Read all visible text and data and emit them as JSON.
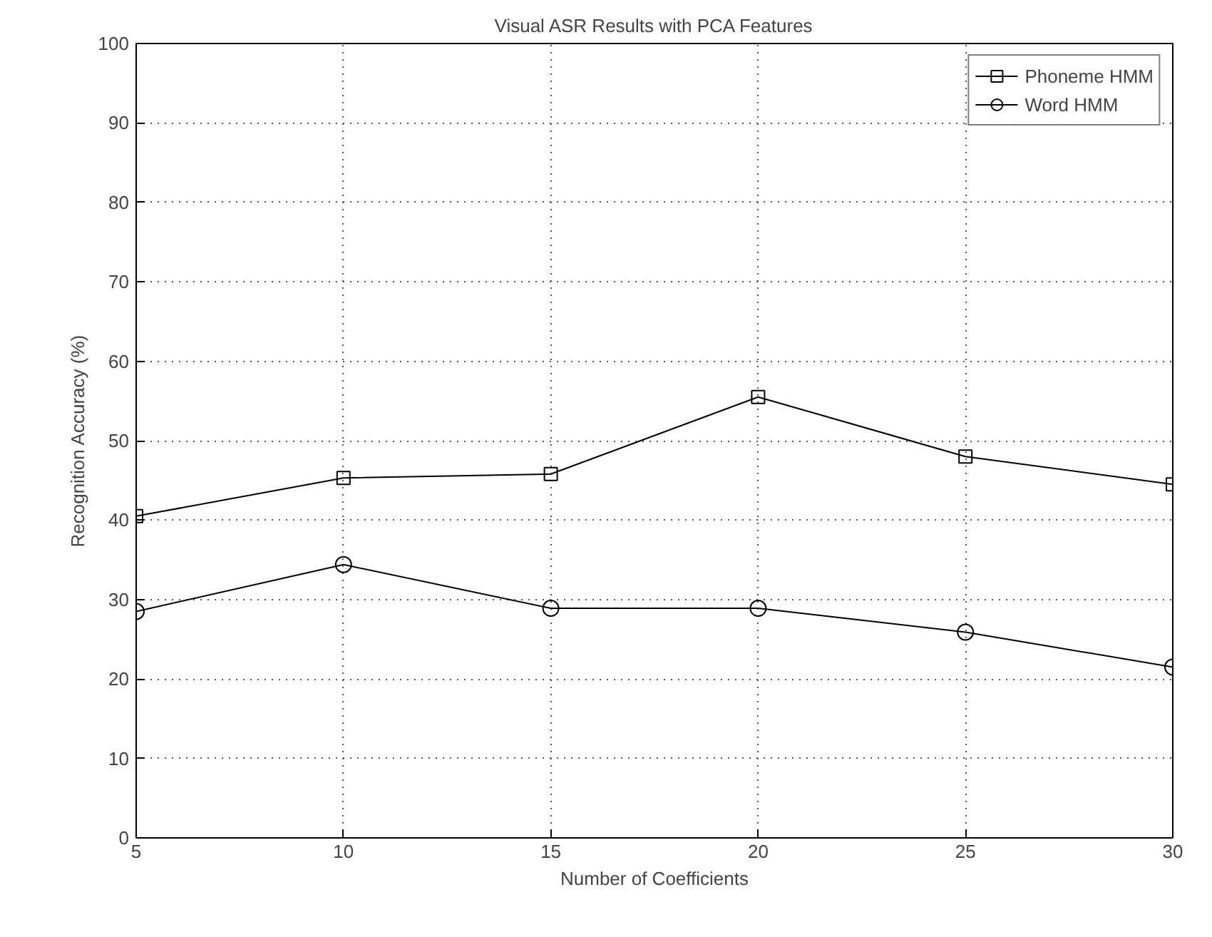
{
  "chart_data": {
    "type": "line",
    "title": "Visual ASR Results with PCA Features",
    "xlabel": "Number of Coefficients",
    "ylabel": "Recognition Accuracy (%)",
    "x": [
      5,
      10,
      15,
      20,
      25,
      30
    ],
    "series": [
      {
        "name": "Phoneme HMM",
        "color": "#000000",
        "marker": "square",
        "values": [
          40.5,
          45.3,
          45.8,
          55.5,
          48.0,
          44.5
        ]
      },
      {
        "name": "Word HMM",
        "color": "#000000",
        "marker": "circle",
        "values": [
          28.5,
          34.4,
          28.9,
          28.9,
          25.9,
          21.5
        ]
      }
    ],
    "xlim": [
      5,
      30
    ],
    "ylim": [
      0,
      100
    ],
    "xticks": [
      5,
      10,
      15,
      20,
      25,
      30
    ],
    "yticks": [
      0,
      10,
      20,
      30,
      40,
      50,
      60,
      70,
      80,
      90,
      100
    ],
    "grid": true,
    "legend": "top right",
    "line_style": "solid"
  }
}
